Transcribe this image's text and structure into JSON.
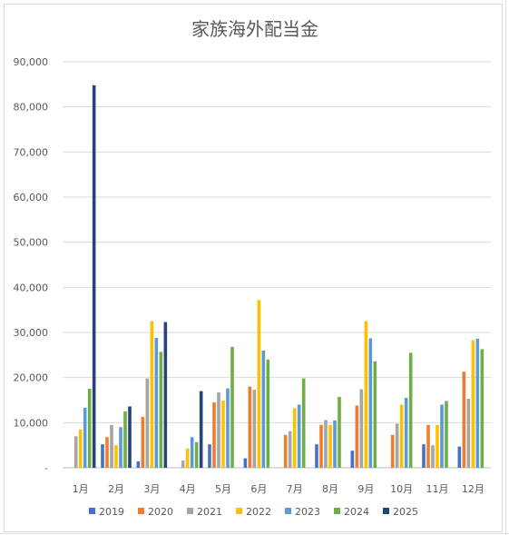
{
  "chart_data": {
    "type": "bar",
    "title": "家族海外配当金",
    "xlabel": "",
    "ylabel": "",
    "ylim": [
      0,
      90000
    ],
    "yticks": [
      "-",
      "10,000",
      "20,000",
      "30,000",
      "40,000",
      "50,000",
      "60,000",
      "70,000",
      "80,000",
      "90,000"
    ],
    "grid": true,
    "legend_position": "bottom",
    "categories": [
      "1月",
      "2月",
      "3月",
      "4月",
      "5月",
      "6月",
      "7月",
      "8月",
      "9月",
      "10月",
      "11月",
      "12月"
    ],
    "series": [
      {
        "name": "2019",
        "color": "#4472c4",
        "values": [
          0,
          5200,
          1400,
          0,
          5200,
          2100,
          0,
          5200,
          3800,
          0,
          5200,
          4700
        ]
      },
      {
        "name": "2020",
        "color": "#ed7d31",
        "values": [
          0,
          6800,
          11300,
          0,
          14500,
          18000,
          7300,
          9500,
          13800,
          7300,
          9500,
          21300
        ]
      },
      {
        "name": "2021",
        "color": "#a5a5a5",
        "values": [
          7000,
          9500,
          19800,
          1600,
          16700,
          17300,
          8100,
          10600,
          17400,
          9800,
          5000,
          15300
        ]
      },
      {
        "name": "2022",
        "color": "#ffc000",
        "values": [
          8500,
          5000,
          32500,
          4300,
          14900,
          37200,
          13200,
          9500,
          32500,
          14000,
          9500,
          28300
        ]
      },
      {
        "name": "2023",
        "color": "#5b9bd5",
        "values": [
          13300,
          9000,
          28800,
          6800,
          17600,
          26000,
          14000,
          10500,
          28700,
          15500,
          14000,
          28600
        ]
      },
      {
        "name": "2024",
        "color": "#70ad47",
        "values": [
          17500,
          12500,
          25700,
          5700,
          26800,
          24000,
          19800,
          15700,
          23600,
          25500,
          14800,
          26300
        ]
      },
      {
        "name": "2025",
        "color": "#264478",
        "values": [
          84800,
          13600,
          32300,
          17000,
          0,
          0,
          0,
          0,
          0,
          0,
          0,
          0
        ]
      }
    ]
  }
}
